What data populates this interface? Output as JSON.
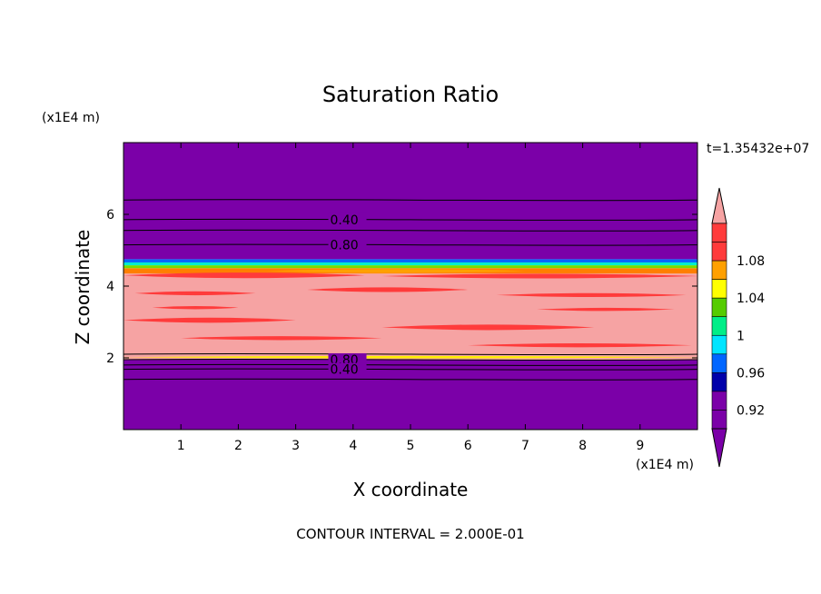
{
  "chart_data": {
    "type": "heatmap",
    "title": "Saturation Ratio",
    "xlabel": "X coordinate",
    "ylabel": "Z coordinate",
    "x_unit": "(x1E4 m)",
    "y_unit": "(x1E4 m)",
    "time_label": "t=1.35432e+07",
    "footer": "CONTOUR INTERVAL = 2.000E-01",
    "xlim": [
      0,
      10
    ],
    "ylim": [
      0,
      8
    ],
    "xticks": [
      1,
      2,
      3,
      4,
      5,
      6,
      7,
      8,
      9
    ],
    "yticks": [
      2,
      4,
      6
    ],
    "contour_labels": [
      {
        "text": "0.40",
        "x": 3.6,
        "z": 5.85
      },
      {
        "text": "0.80",
        "x": 3.6,
        "z": 5.15
      },
      {
        "text": "0.80",
        "x": 3.6,
        "z": 1.95
      },
      {
        "text": "0.40",
        "x": 3.6,
        "z": 1.68
      }
    ],
    "contour_lines_z": [
      6.4,
      5.85,
      5.55,
      5.15,
      2.1,
      1.95,
      1.8,
      1.68,
      1.4
    ],
    "bands": [
      {
        "z0": 0.0,
        "z1": 1.95,
        "color": "#7b00a8"
      },
      {
        "z0": 1.95,
        "z1": 2.05,
        "color": "#f6a3a3"
      },
      {
        "z0": 2.05,
        "z1": 4.35,
        "color": "#f6a3a3"
      },
      {
        "z0": 4.35,
        "z1": 4.5,
        "color": "#ff7f00"
      },
      {
        "z0": 4.5,
        "z1": 4.58,
        "color": "#77dd00"
      },
      {
        "z0": 4.58,
        "z1": 4.66,
        "color": "#00eecc"
      },
      {
        "z0": 4.66,
        "z1": 4.75,
        "color": "#0066ff"
      },
      {
        "z0": 4.75,
        "z1": 8.0,
        "color": "#7b00a8"
      }
    ],
    "streaks": [
      {
        "x0": 0.0,
        "x1": 4.2,
        "z": 4.3,
        "h": 0.14,
        "color": "#ff3b3b"
      },
      {
        "x0": 4.5,
        "x1": 10.0,
        "z": 4.28,
        "h": 0.12,
        "color": "#ff3b3b"
      },
      {
        "x0": 2.5,
        "x1": 7.0,
        "z": 4.42,
        "h": 0.1,
        "color": "#ffa000"
      },
      {
        "x0": 0.2,
        "x1": 2.3,
        "z": 3.8,
        "h": 0.1,
        "color": "#ff3b3b"
      },
      {
        "x0": 3.2,
        "x1": 6.0,
        "z": 3.9,
        "h": 0.12,
        "color": "#ff3b3b"
      },
      {
        "x0": 6.5,
        "x1": 9.8,
        "z": 3.75,
        "h": 0.1,
        "color": "#ff3b3b"
      },
      {
        "x0": 0.0,
        "x1": 3.0,
        "z": 3.05,
        "h": 0.13,
        "color": "#ff3b3b"
      },
      {
        "x0": 4.5,
        "x1": 8.2,
        "z": 2.85,
        "h": 0.14,
        "color": "#ff3b3b"
      },
      {
        "x0": 1.0,
        "x1": 4.5,
        "z": 2.55,
        "h": 0.1,
        "color": "#ff3b3b"
      },
      {
        "x0": 6.0,
        "x1": 9.9,
        "z": 2.35,
        "h": 0.1,
        "color": "#ff3b3b"
      },
      {
        "x0": 0.5,
        "x1": 2.0,
        "z": 3.4,
        "h": 0.08,
        "color": "#ff3b3b"
      },
      {
        "x0": 7.2,
        "x1": 9.6,
        "z": 3.35,
        "h": 0.08,
        "color": "#ff3b3b"
      },
      {
        "x0": 0.0,
        "x1": 10.0,
        "z": 2.02,
        "h": 0.06,
        "color": "#ffee00"
      }
    ],
    "colorbar": {
      "levels": [
        {
          "label": "",
          "color": "#7b00a8"
        },
        {
          "label": "0.92",
          "color": "#7b00a8"
        },
        {
          "label": "",
          "color": "#0000aa"
        },
        {
          "label": "0.96",
          "color": "#0066ff"
        },
        {
          "label": "",
          "color": "#00e5ff"
        },
        {
          "label": "1",
          "color": "#00ee88"
        },
        {
          "label": "",
          "color": "#55cc00"
        },
        {
          "label": "1.04",
          "color": "#ffff00"
        },
        {
          "label": "",
          "color": "#ffa000"
        },
        {
          "label": "1.08",
          "color": "#ff3b3b"
        },
        {
          "label": "",
          "color": "#ff3b3b"
        }
      ],
      "top_color": "#f6a3a3",
      "bottom_color": "#7b00a8"
    }
  }
}
